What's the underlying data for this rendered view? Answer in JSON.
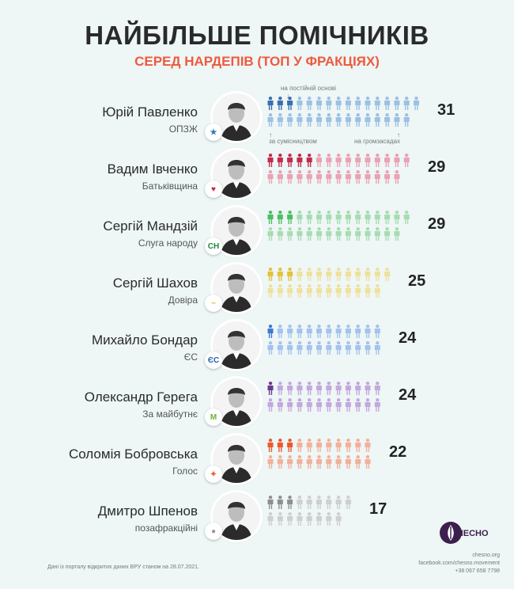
{
  "header": {
    "title": "НАЙБІЛЬШЕ ПОМІЧНИКІВ",
    "subtitle": "СЕРЕД НАРДЕПІВ (ТОП У ФРАКЦІЯХ)"
  },
  "legend_notes": {
    "permanent": "на постійній основі",
    "parttime": "за сумісництвом",
    "voluntary": "на громзасадах"
  },
  "chart_data": {
    "type": "bar",
    "title": "НАЙБІЛЬШЕ ПОМІЧНИКІВ",
    "subtitle": "СЕРЕД НАРДЕПІВ (ТОП У ФРАКЦІЯХ)",
    "categories": [
      "Юрій Павленко",
      "Вадим Івченко",
      "Сергій Мандзій",
      "Сергій Шахов",
      "Михайло Бондар",
      "Олександр Герега",
      "Соломія Бобровська",
      "Дмитро Шпенов"
    ],
    "factions": [
      "ОПЗЖ",
      "Батьківщина",
      "Слуга народу",
      "Довіра",
      "ЄС",
      "За майбутнє",
      "Голос",
      "позафракційні"
    ],
    "values": [
      31,
      29,
      29,
      25,
      24,
      24,
      22,
      17
    ],
    "permanent": [
      3,
      5,
      3,
      3,
      1,
      1,
      3,
      3
    ],
    "colors_dark": [
      "#3a6fb0",
      "#c42a4c",
      "#4cbf62",
      "#e3c23c",
      "#3f7ad0",
      "#6a3b91",
      "#ea5a2c",
      "#8f8f8f"
    ],
    "colors_light": [
      "#9bc1e3",
      "#eaa2b3",
      "#a7dcb1",
      "#efe19c",
      "#a4c3ec",
      "#c3a8dd",
      "#f2b09a",
      "#cfcfcf"
    ]
  },
  "rows": [
    {
      "name": "Юрій Павленко",
      "faction": "ОПЗЖ",
      "count": "31",
      "badge": "★",
      "badge_color": "#2f7bbf"
    },
    {
      "name": "Вадим Івченко",
      "faction": "Батьківщина",
      "count": "29",
      "badge": "♥",
      "badge_color": "#d0223f"
    },
    {
      "name": "Сергій Мандзій",
      "faction": "Слуга народу",
      "count": "29",
      "badge": "СН",
      "badge_color": "#1a8a3a"
    },
    {
      "name": "Сергій Шахов",
      "faction": "Довіра",
      "count": "25",
      "badge": "~",
      "badge_color": "#e3b51d"
    },
    {
      "name": "Михайло Бондар",
      "faction": "ЄС",
      "count": "24",
      "badge": "ЄС",
      "badge_color": "#2a61a8"
    },
    {
      "name": "Олександр Герега",
      "faction": "За майбутнє",
      "count": "24",
      "badge": "M",
      "badge_color": "#6ab23a"
    },
    {
      "name": "Соломія Бобровська",
      "faction": "Голос",
      "count": "22",
      "badge": "✦",
      "badge_color": "#ea5a2c"
    },
    {
      "name": "Дмитро Шпенов",
      "faction": "позафракційні",
      "count": "17",
      "badge": "●",
      "badge_color": "#999999"
    }
  ],
  "footer": {
    "source": "Дані із порталу відкритих даних ВРУ станом на 28.07.2021.",
    "site": "chesno.org",
    "facebook": "facebook.com/chesno.movement",
    "phone": "+38 067 658 7798",
    "logo_text": "ЧЕСНО",
    "logo_color": "#3b1f4d"
  }
}
